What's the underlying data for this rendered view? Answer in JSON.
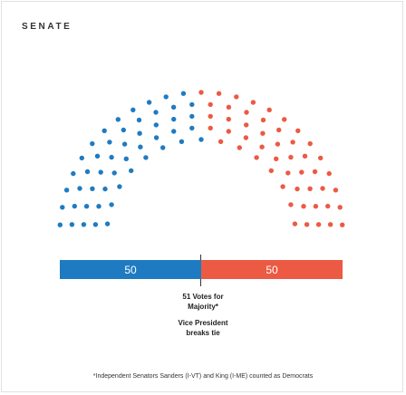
{
  "title": "SENATE",
  "bar": {
    "dem_label": "50",
    "rep_label": "50"
  },
  "colors": {
    "democrat": "#1f7bc1",
    "republican": "#ec5a44"
  },
  "notes": {
    "majority_line1": "51 Votes for",
    "majority_line2": "Majority*",
    "vp_line1": "Vice President",
    "vp_line2": "breaks tie"
  },
  "footnote": "*Independent Senators Sanders (I-VT) and King (I-ME) counted as Democrats",
  "seats": {
    "democrat": 50,
    "republican": 50
  }
}
